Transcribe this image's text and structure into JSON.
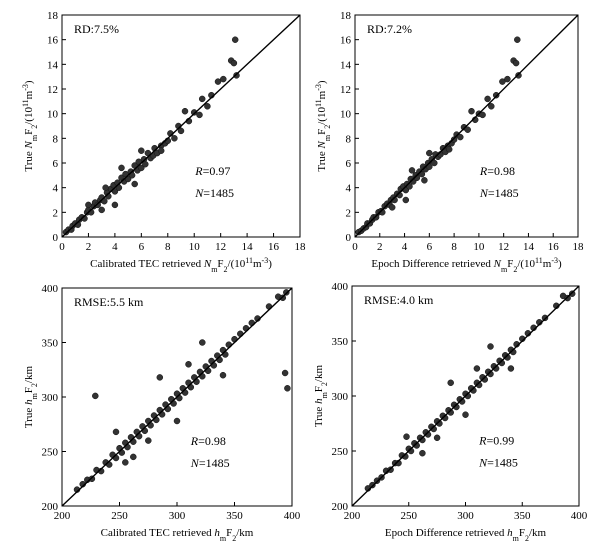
{
  "chart_data": [
    {
      "type": "scatter",
      "xlabel": {
        "pre": "Calibrated TEC retrieved ",
        "var": "N",
        "sub1": "m",
        "mid": "F",
        "sub2": "2",
        "post": "/(10",
        "sup": "11",
        "post2": "m",
        "sup2": "-3",
        "post3": ")"
      },
      "ylabel": {
        "pre": "True ",
        "var": "N",
        "sub1": "m",
        "mid": "F",
        "sub2": "2",
        "post": "/(10",
        "sup": "11",
        "post2": "m",
        "sup2": "-3",
        "post3": ")"
      },
      "xlim": [
        0,
        18
      ],
      "ylim": [
        0,
        18
      ],
      "xticks": [
        0,
        2,
        4,
        6,
        8,
        10,
        12,
        14,
        16,
        18
      ],
      "yticks": [
        0,
        2,
        4,
        6,
        8,
        10,
        12,
        14,
        16,
        18
      ],
      "annotations": {
        "top": "RD:7.5%",
        "r_var": "R",
        "r_val": "=0.97",
        "n_var": "N",
        "n_val": "=1485"
      },
      "diagonal": true,
      "points": [
        [
          0.3,
          0.4
        ],
        [
          0.5,
          0.6
        ],
        [
          0.7,
          0.6
        ],
        [
          0.8,
          0.9
        ],
        [
          1.0,
          1.1
        ],
        [
          1.2,
          1.0
        ],
        [
          1.3,
          1.4
        ],
        [
          1.5,
          1.6
        ],
        [
          1.7,
          1.5
        ],
        [
          1.9,
          2.0
        ],
        [
          2.0,
          2.2
        ],
        [
          2.2,
          2.0
        ],
        [
          2.4,
          2.5
        ],
        [
          2.5,
          2.8
        ],
        [
          2.7,
          2.6
        ],
        [
          2.9,
          3.0
        ],
        [
          3.0,
          3.2
        ],
        [
          3.2,
          2.9
        ],
        [
          3.4,
          3.6
        ],
        [
          3.5,
          3.3
        ],
        [
          3.7,
          3.9
        ],
        [
          3.9,
          4.2
        ],
        [
          4.0,
          3.7
        ],
        [
          4.2,
          4.4
        ],
        [
          4.3,
          4.0
        ],
        [
          4.5,
          4.8
        ],
        [
          4.7,
          4.5
        ],
        [
          4.8,
          5.1
        ],
        [
          5.0,
          4.7
        ],
        [
          5.2,
          5.3
        ],
        [
          5.3,
          5.0
        ],
        [
          5.5,
          5.8
        ],
        [
          5.7,
          5.4
        ],
        [
          5.8,
          6.1
        ],
        [
          6.0,
          5.6
        ],
        [
          6.2,
          6.3
        ],
        [
          6.3,
          5.9
        ],
        [
          6.5,
          6.8
        ],
        [
          6.7,
          6.4
        ],
        [
          6.9,
          6.6
        ],
        [
          7.0,
          7.2
        ],
        [
          7.2,
          6.8
        ],
        [
          7.5,
          7.4
        ],
        [
          7.8,
          7.6
        ],
        [
          8.0,
          7.8
        ],
        [
          8.2,
          8.4
        ],
        [
          8.5,
          8.0
        ],
        [
          8.8,
          9.0
        ],
        [
          9.0,
          8.6
        ],
        [
          9.3,
          10.2
        ],
        [
          9.6,
          9.4
        ],
        [
          10.0,
          10.1
        ],
        [
          10.4,
          9.9
        ],
        [
          10.6,
          11.2
        ],
        [
          11.0,
          10.6
        ],
        [
          11.3,
          11.5
        ],
        [
          11.8,
          12.6
        ],
        [
          12.2,
          12.8
        ],
        [
          12.8,
          14.3
        ],
        [
          13.0,
          14.1
        ],
        [
          13.1,
          16.0
        ],
        [
          13.2,
          13.1
        ],
        [
          4.0,
          2.6
        ],
        [
          3.0,
          2.2
        ],
        [
          5.5,
          4.3
        ],
        [
          2.0,
          2.6
        ],
        [
          6.0,
          7.0
        ],
        [
          4.5,
          5.6
        ],
        [
          3.3,
          4.0
        ],
        [
          7.5,
          7.0
        ]
      ]
    },
    {
      "type": "scatter",
      "xlabel": {
        "pre": "Epoch Difference retrieved ",
        "var": "N",
        "sub1": "m",
        "mid": "F",
        "sub2": "2",
        "post": "/(10",
        "sup": "11",
        "post2": "m",
        "sup2": "-3",
        "post3": ")"
      },
      "ylabel": {
        "pre": "True ",
        "var": "N",
        "sub1": "m",
        "mid": "F",
        "sub2": "2",
        "post": "/(10",
        "sup": "11",
        "post2": "m",
        "sup2": "-3",
        "post3": ")"
      },
      "xlim": [
        0,
        18
      ],
      "ylim": [
        0,
        18
      ],
      "xticks": [
        0,
        2,
        4,
        6,
        8,
        10,
        12,
        14,
        16,
        18
      ],
      "yticks": [
        0,
        2,
        4,
        6,
        8,
        10,
        12,
        14,
        16,
        18
      ],
      "annotations": {
        "top": "RD:7.2%",
        "r_var": "R",
        "r_val": "=0.98",
        "n_var": "N",
        "n_val": "=1485"
      },
      "diagonal": true,
      "points": [
        [
          0.3,
          0.4
        ],
        [
          0.5,
          0.5
        ],
        [
          0.7,
          0.7
        ],
        [
          0.9,
          0.8
        ],
        [
          1.0,
          1.1
        ],
        [
          1.2,
          1.1
        ],
        [
          1.4,
          1.4
        ],
        [
          1.5,
          1.6
        ],
        [
          1.7,
          1.6
        ],
        [
          1.9,
          2.0
        ],
        [
          2.1,
          2.1
        ],
        [
          2.2,
          2.0
        ],
        [
          2.4,
          2.5
        ],
        [
          2.6,
          2.7
        ],
        [
          2.8,
          2.6
        ],
        [
          2.9,
          3.0
        ],
        [
          3.1,
          3.2
        ],
        [
          3.2,
          3.0
        ],
        [
          3.4,
          3.5
        ],
        [
          3.6,
          3.4
        ],
        [
          3.7,
          3.9
        ],
        [
          3.9,
          4.1
        ],
        [
          4.1,
          3.8
        ],
        [
          4.2,
          4.3
        ],
        [
          4.4,
          4.1
        ],
        [
          4.5,
          4.7
        ],
        [
          4.7,
          4.5
        ],
        [
          4.9,
          5.0
        ],
        [
          5.0,
          4.8
        ],
        [
          5.2,
          5.3
        ],
        [
          5.4,
          5.1
        ],
        [
          5.5,
          5.7
        ],
        [
          5.7,
          5.5
        ],
        [
          5.9,
          6.0
        ],
        [
          6.0,
          5.7
        ],
        [
          6.2,
          6.3
        ],
        [
          6.4,
          6.0
        ],
        [
          6.5,
          6.7
        ],
        [
          6.7,
          6.5
        ],
        [
          6.9,
          6.7
        ],
        [
          7.1,
          7.2
        ],
        [
          7.3,
          6.9
        ],
        [
          7.5,
          7.4
        ],
        [
          7.8,
          7.6
        ],
        [
          8.0,
          7.9
        ],
        [
          8.2,
          8.3
        ],
        [
          8.5,
          8.1
        ],
        [
          8.8,
          8.9
        ],
        [
          9.1,
          8.7
        ],
        [
          9.4,
          10.2
        ],
        [
          9.7,
          9.5
        ],
        [
          10.0,
          10.0
        ],
        [
          10.3,
          9.9
        ],
        [
          10.7,
          11.2
        ],
        [
          11.0,
          10.6
        ],
        [
          11.4,
          11.5
        ],
        [
          11.9,
          12.6
        ],
        [
          12.3,
          12.8
        ],
        [
          12.8,
          14.3
        ],
        [
          13.0,
          14.1
        ],
        [
          13.1,
          16.0
        ],
        [
          13.2,
          13.1
        ],
        [
          4.1,
          3.0
        ],
        [
          3.0,
          2.4
        ],
        [
          5.6,
          4.6
        ],
        [
          6.0,
          6.8
        ],
        [
          4.6,
          5.4
        ],
        [
          7.6,
          7.1
        ]
      ]
    },
    {
      "type": "scatter",
      "xlabel": {
        "pre": "Calibrated TEC retrieved ",
        "var": "h",
        "sub1": "m",
        "mid": "F",
        "sub2": "2",
        "post": "/km"
      },
      "ylabel": {
        "pre": "True ",
        "var": "h",
        "sub1": "m",
        "mid": "F",
        "sub2": "2",
        "post": "/km"
      },
      "xlim": [
        200,
        400
      ],
      "ylim": [
        200,
        400
      ],
      "xticks": [
        200,
        250,
        300,
        350,
        400
      ],
      "yticks": [
        200,
        250,
        300,
        350,
        400
      ],
      "annotations": {
        "top": "RMSE:5.5 km",
        "r_var": "R",
        "r_val": "=0.98",
        "n_var": "N",
        "n_val": "=1485"
      },
      "diagonal": true,
      "points": [
        [
          213,
          215
        ],
        [
          218,
          220
        ],
        [
          222,
          224
        ],
        [
          226,
          225
        ],
        [
          230,
          233
        ],
        [
          234,
          232
        ],
        [
          238,
          240
        ],
        [
          241,
          238
        ],
        [
          244,
          247
        ],
        [
          247,
          244
        ],
        [
          250,
          253
        ],
        [
          252,
          249
        ],
        [
          255,
          258
        ],
        [
          257,
          254
        ],
        [
          260,
          263
        ],
        [
          262,
          259
        ],
        [
          265,
          268
        ],
        [
          267,
          264
        ],
        [
          270,
          273
        ],
        [
          272,
          269
        ],
        [
          275,
          278
        ],
        [
          277,
          274
        ],
        [
          280,
          283
        ],
        [
          282,
          279
        ],
        [
          285,
          288
        ],
        [
          287,
          284
        ],
        [
          290,
          293
        ],
        [
          292,
          289
        ],
        [
          295,
          298
        ],
        [
          297,
          294
        ],
        [
          300,
          303
        ],
        [
          302,
          299
        ],
        [
          305,
          308
        ],
        [
          307,
          304
        ],
        [
          310,
          313
        ],
        [
          312,
          309
        ],
        [
          315,
          318
        ],
        [
          317,
          314
        ],
        [
          320,
          323
        ],
        [
          322,
          319
        ],
        [
          325,
          328
        ],
        [
          327,
          324
        ],
        [
          330,
          333
        ],
        [
          332,
          329
        ],
        [
          335,
          338
        ],
        [
          337,
          334
        ],
        [
          340,
          343
        ],
        [
          342,
          339
        ],
        [
          345,
          348
        ],
        [
          350,
          353
        ],
        [
          355,
          358
        ],
        [
          360,
          363
        ],
        [
          365,
          368
        ],
        [
          370,
          372
        ],
        [
          380,
          383
        ],
        [
          388,
          392
        ],
        [
          392,
          391
        ],
        [
          395,
          396
        ],
        [
          394,
          322
        ],
        [
          396,
          308
        ],
        [
          229,
          301
        ],
        [
          247,
          268
        ],
        [
          262,
          245
        ],
        [
          285,
          318
        ],
        [
          300,
          278
        ],
        [
          322,
          350
        ],
        [
          340,
          320
        ],
        [
          255,
          240
        ],
        [
          310,
          330
        ],
        [
          275,
          260
        ]
      ]
    },
    {
      "type": "scatter",
      "xlabel": {
        "pre": "Epoch Difference retrieved ",
        "var": "h",
        "sub1": "m",
        "mid": "F",
        "sub2": "2",
        "post": "/km"
      },
      "ylabel": {
        "pre": "True ",
        "var": "h",
        "sub1": "m",
        "mid": "F",
        "sub2": "2",
        "post": "/km"
      },
      "xlim": [
        200,
        400
      ],
      "ylim": [
        200,
        400
      ],
      "xticks": [
        200,
        250,
        300,
        350,
        400
      ],
      "yticks": [
        200,
        250,
        300,
        350,
        400
      ],
      "annotations": {
        "top": "RMSE:4.0 km",
        "r_var": "R",
        "r_val": "=0.99",
        "n_var": "N",
        "n_val": "=1485"
      },
      "diagonal": true,
      "points": [
        [
          214,
          216
        ],
        [
          218,
          219
        ],
        [
          222,
          223
        ],
        [
          226,
          226
        ],
        [
          230,
          232
        ],
        [
          234,
          233
        ],
        [
          238,
          239
        ],
        [
          241,
          239
        ],
        [
          244,
          246
        ],
        [
          247,
          245
        ],
        [
          250,
          252
        ],
        [
          252,
          250
        ],
        [
          255,
          257
        ],
        [
          257,
          255
        ],
        [
          260,
          262
        ],
        [
          262,
          260
        ],
        [
          265,
          267
        ],
        [
          267,
          265
        ],
        [
          270,
          272
        ],
        [
          272,
          270
        ],
        [
          275,
          277
        ],
        [
          277,
          275
        ],
        [
          280,
          282
        ],
        [
          282,
          280
        ],
        [
          285,
          287
        ],
        [
          287,
          285
        ],
        [
          290,
          292
        ],
        [
          292,
          290
        ],
        [
          295,
          297
        ],
        [
          297,
          295
        ],
        [
          300,
          302
        ],
        [
          302,
          300
        ],
        [
          305,
          307
        ],
        [
          307,
          305
        ],
        [
          310,
          312
        ],
        [
          312,
          310
        ],
        [
          315,
          317
        ],
        [
          317,
          315
        ],
        [
          320,
          322
        ],
        [
          322,
          320
        ],
        [
          325,
          327
        ],
        [
          327,
          325
        ],
        [
          330,
          332
        ],
        [
          332,
          330
        ],
        [
          335,
          337
        ],
        [
          337,
          335
        ],
        [
          340,
          342
        ],
        [
          342,
          340
        ],
        [
          345,
          347
        ],
        [
          350,
          352
        ],
        [
          355,
          357
        ],
        [
          360,
          362
        ],
        [
          365,
          367
        ],
        [
          370,
          371
        ],
        [
          380,
          382
        ],
        [
          386,
          391
        ],
        [
          390,
          389
        ],
        [
          394,
          393
        ],
        [
          248,
          263
        ],
        [
          262,
          248
        ],
        [
          287,
          312
        ],
        [
          300,
          283
        ],
        [
          322,
          345
        ],
        [
          340,
          325
        ],
        [
          310,
          325
        ],
        [
          275,
          262
        ]
      ]
    }
  ]
}
